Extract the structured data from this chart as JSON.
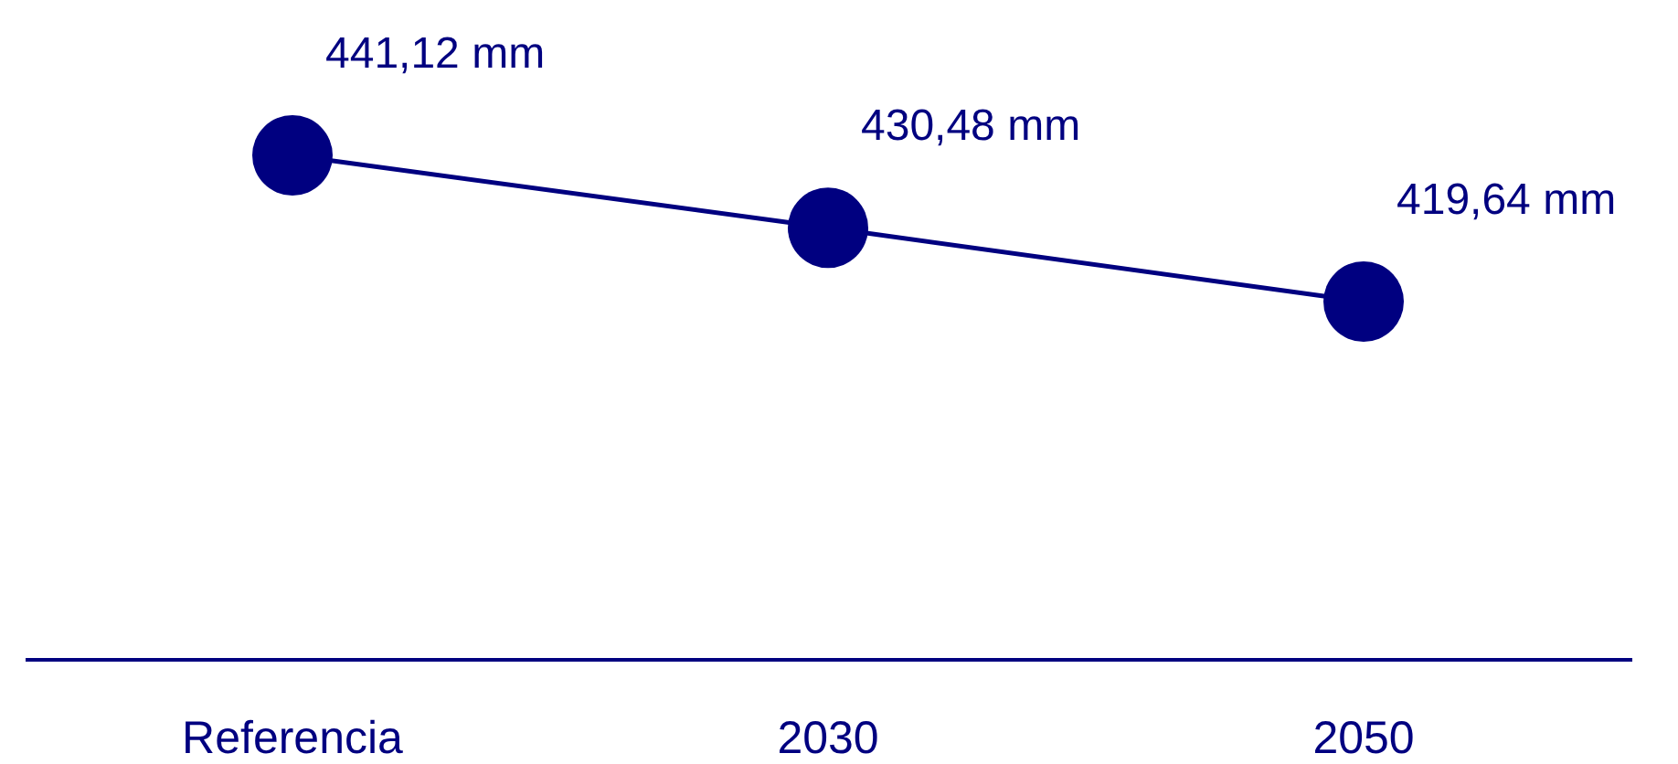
{
  "chart_data": {
    "type": "line",
    "categories": [
      "Referencia",
      "2030",
      "2050"
    ],
    "series": [
      {
        "color": "#000080",
        "values": [
          441.12,
          430.48,
          419.64
        ],
        "value_labels": [
          "441,12 mm",
          "430,48 mm",
          "419,64 mm"
        ]
      }
    ],
    "tick_labels": "x",
    "marker": "circle",
    "line_style": "solid"
  }
}
